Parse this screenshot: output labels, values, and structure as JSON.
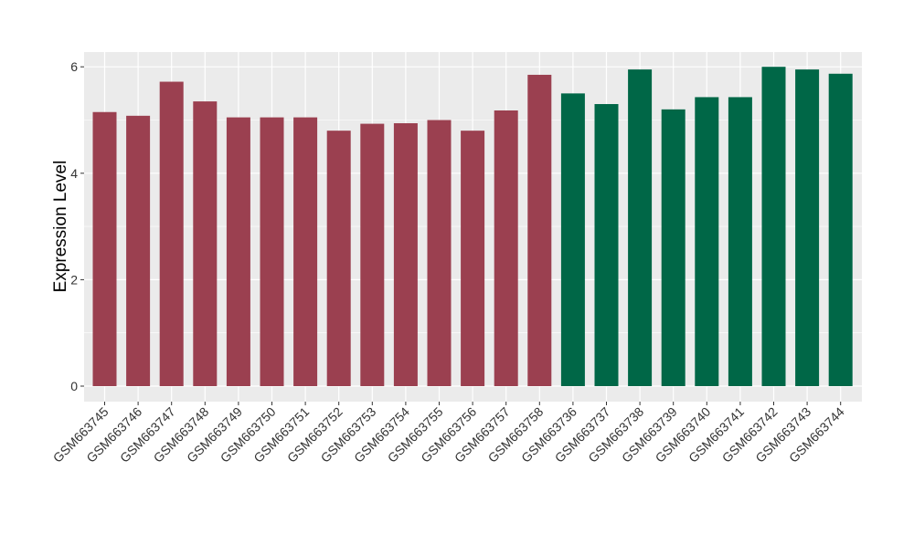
{
  "chart_data": {
    "type": "bar",
    "title": "",
    "xlabel": "",
    "ylabel": "Expression Level",
    "ylim": [
      0,
      6.3
    ],
    "yticks": [
      0,
      2,
      4,
      6
    ],
    "grid": true,
    "categories": [
      "GSM663745",
      "GSM663746",
      "GSM663747",
      "GSM663748",
      "GSM663749",
      "GSM663750",
      "GSM663751",
      "GSM663752",
      "GSM663753",
      "GSM663754",
      "GSM663755",
      "GSM663756",
      "GSM663757",
      "GSM663758",
      "GSM663736",
      "GSM663737",
      "GSM663738",
      "GSM663739",
      "GSM663740",
      "GSM663741",
      "GSM663742",
      "GSM663743",
      "GSM663744"
    ],
    "values": [
      5.15,
      5.08,
      5.72,
      5.35,
      5.05,
      5.05,
      5.05,
      4.8,
      4.93,
      4.94,
      5.0,
      4.8,
      5.18,
      5.85,
      5.5,
      5.3,
      5.95,
      5.2,
      5.43,
      5.43,
      6.0,
      5.95,
      5.87
    ],
    "colors": [
      "#9b4050",
      "#9b4050",
      "#9b4050",
      "#9b4050",
      "#9b4050",
      "#9b4050",
      "#9b4050",
      "#9b4050",
      "#9b4050",
      "#9b4050",
      "#9b4050",
      "#9b4050",
      "#9b4050",
      "#9b4050",
      "#006747",
      "#006747",
      "#006747",
      "#006747",
      "#006747",
      "#006747",
      "#006747",
      "#006747",
      "#006747"
    ],
    "panel_background": "#ebebeb",
    "grid_color": "#ffffff"
  }
}
